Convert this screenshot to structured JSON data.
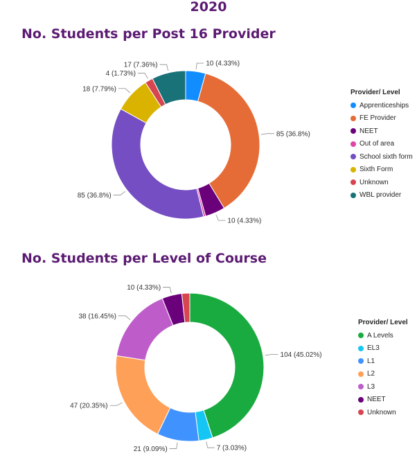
{
  "page": {
    "year": "2020"
  },
  "chart_data": [
    {
      "type": "pie",
      "title": "No. Students per Post 16 Provider",
      "legend_title": "Provider/ Level",
      "legend_position": "right",
      "slices": [
        {
          "label": "Apprenticeships",
          "value": 10,
          "display": "10 (4.33%)",
          "color": "#118DFF"
        },
        {
          "label": "FE Provider",
          "value": 85,
          "display": "85 (36.8%)",
          "color": "#E66C37"
        },
        {
          "label": "NEET",
          "value": 10,
          "display": "10 (4.33%)",
          "color": "#6B007B"
        },
        {
          "label": "Out of area",
          "value": 1,
          "display": "",
          "color": "#E044A7"
        },
        {
          "label": "School sixth form",
          "value": 85,
          "display": "85 (36.8%)",
          "color": "#744EC2"
        },
        {
          "label": "Sixth Form",
          "value": 18,
          "display": "18 (7.79%)",
          "color": "#D9B300"
        },
        {
          "label": "Unknown",
          "value": 4,
          "display": "4 (1.73%)",
          "color": "#D64550"
        },
        {
          "label": "WBL provider",
          "value": 17,
          "display": "17 (7.36%)",
          "color": "#197278"
        }
      ]
    },
    {
      "type": "pie",
      "title": "No. Students per Level of Course",
      "legend_title": "Provider/ Level",
      "legend_position": "right",
      "slices": [
        {
          "label": "A Levels",
          "value": 104,
          "display": "104 (45.02%)",
          "color": "#1AAB40"
        },
        {
          "label": "EL3",
          "value": 7,
          "display": "7 (3.03%)",
          "color": "#15C6F4"
        },
        {
          "label": "L1",
          "value": 21,
          "display": "21 (9.09%)",
          "color": "#4092FF"
        },
        {
          "label": "L2",
          "value": 47,
          "display": "47 (20.35%)",
          "color": "#FFA058"
        },
        {
          "label": "L3",
          "value": 38,
          "display": "38 (16.45%)",
          "color": "#BE5DC9"
        },
        {
          "label": "NEET",
          "value": 10,
          "display": "10 (4.33%)",
          "color": "#6B007B"
        },
        {
          "label": "Unknown",
          "value": 4,
          "display": "",
          "color": "#D64550"
        }
      ]
    }
  ]
}
